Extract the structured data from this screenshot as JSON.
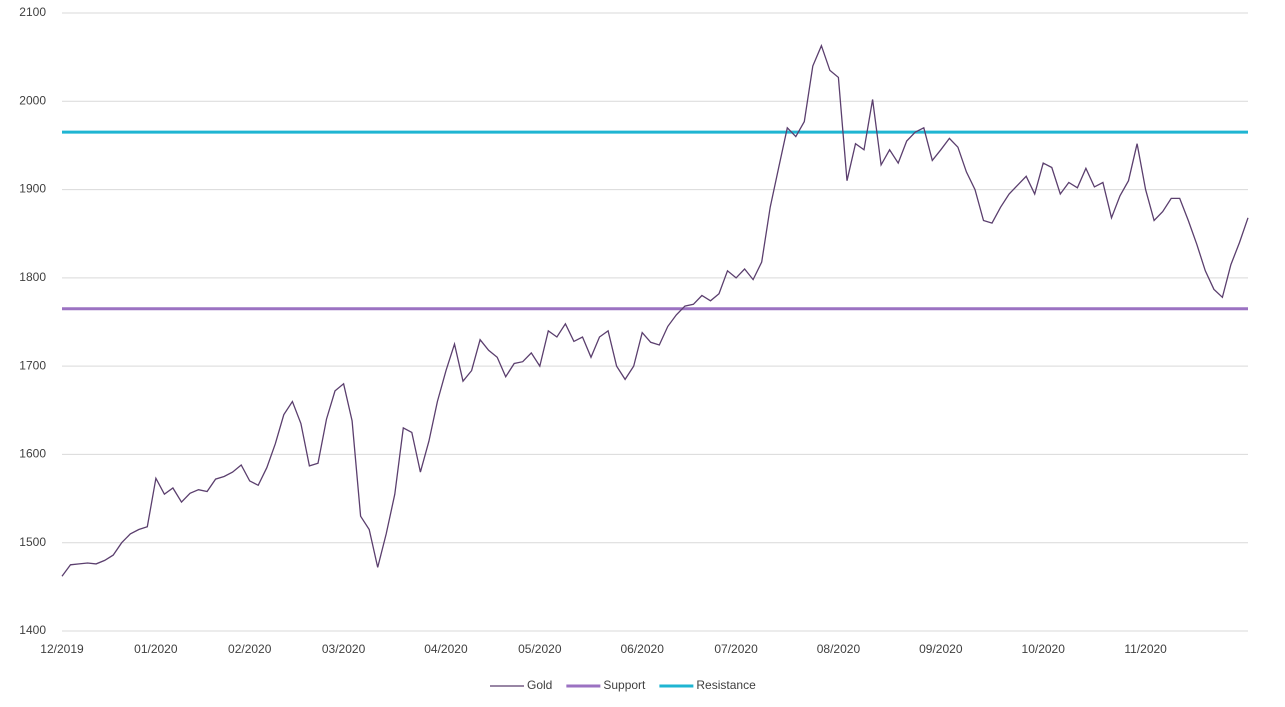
{
  "chart_data": {
    "type": "line",
    "categories": [
      "12/2019",
      null,
      null,
      null,
      null,
      null,
      null,
      null,
      null,
      null,
      null,
      "01/2020",
      null,
      null,
      null,
      null,
      null,
      null,
      null,
      null,
      null,
      null,
      "02/2020",
      null,
      null,
      null,
      null,
      null,
      null,
      null,
      null,
      null,
      null,
      "03/2020",
      null,
      null,
      null,
      null,
      null,
      null,
      null,
      null,
      null,
      null,
      null,
      "04/2020",
      null,
      null,
      null,
      null,
      null,
      null,
      null,
      null,
      null,
      null,
      "05/2020",
      null,
      null,
      null,
      null,
      null,
      null,
      null,
      null,
      null,
      null,
      null,
      "06/2020",
      null,
      null,
      null,
      null,
      null,
      null,
      null,
      null,
      null,
      null,
      "07/2020",
      null,
      null,
      null,
      null,
      null,
      null,
      null,
      null,
      null,
      null,
      null,
      "08/2020",
      null,
      null,
      null,
      null,
      null,
      null,
      null,
      null,
      null,
      null,
      null,
      "09/2020",
      null,
      null,
      null,
      null,
      null,
      null,
      null,
      null,
      null,
      null,
      null,
      "10/2020",
      null,
      null,
      null,
      null,
      null,
      null,
      null,
      null,
      null,
      null,
      null,
      "11/2020",
      null,
      null,
      null,
      null,
      null,
      null,
      null,
      null,
      null,
      null,
      null,
      null
    ],
    "series": [
      {
        "name": "Gold",
        "color": "#5b3f6e",
        "values": [
          1462,
          1475,
          1476,
          1477,
          1476,
          1480,
          1486,
          1500,
          1510,
          1515,
          1518,
          1573,
          1555,
          1562,
          1546,
          1556,
          1560,
          1558,
          1572,
          1575,
          1580,
          1588,
          1570,
          1565,
          1585,
          1612,
          1645,
          1660,
          1635,
          1587,
          1590,
          1640,
          1672,
          1680,
          1638,
          1530,
          1515,
          1472,
          1510,
          1555,
          1630,
          1625,
          1580,
          1615,
          1660,
          1695,
          1725,
          1683,
          1695,
          1730,
          1718,
          1710,
          1688,
          1703,
          1705,
          1715,
          1700,
          1740,
          1733,
          1748,
          1728,
          1733,
          1710,
          1733,
          1740,
          1700,
          1685,
          1700,
          1738,
          1727,
          1724,
          1745,
          1758,
          1768,
          1770,
          1780,
          1774,
          1782,
          1808,
          1800,
          1810,
          1798,
          1818,
          1880,
          1925,
          1970,
          1960,
          1977,
          2040,
          2063,
          2035,
          2027,
          1910,
          1952,
          1945,
          2002,
          1928,
          1945,
          1930,
          1955,
          1965,
          1970,
          1933,
          1945,
          1958,
          1948,
          1920,
          1900,
          1865,
          1862,
          1880,
          1895,
          1905,
          1915,
          1895,
          1930,
          1925,
          1895,
          1908,
          1902,
          1924,
          1903,
          1908,
          1868,
          1893,
          1910,
          1952,
          1900,
          1865,
          1875,
          1890,
          1890,
          1865,
          1838,
          1808,
          1787,
          1778,
          1815,
          1840,
          1868
        ]
      }
    ],
    "reference_lines": [
      {
        "name": "Support",
        "color": "#9b72c2",
        "value": 1765
      },
      {
        "name": "Resistance",
        "color": "#1fb5d2",
        "value": 1965
      }
    ],
    "ylim": [
      1400,
      2100
    ],
    "yticks": [
      1400,
      1500,
      1600,
      1700,
      1800,
      1900,
      2000,
      2100
    ],
    "grid": true,
    "legend": "bottom"
  }
}
